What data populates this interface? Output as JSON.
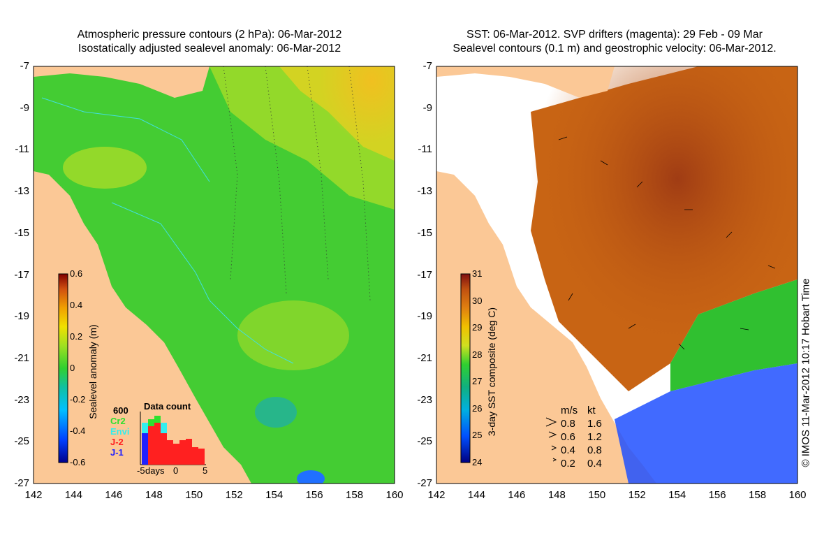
{
  "left_panel": {
    "title_line1": "Atmospheric pressure contours (2 hPa): 06-Mar-2012",
    "title_line2": "Isostatically adjusted sealevel anomaly: 06-Mar-2012",
    "y_ticks": [
      "-7",
      "-9",
      "-11",
      "-13",
      "-15",
      "-17",
      "-19",
      "-21",
      "-23",
      "-25",
      "-27"
    ],
    "x_ticks": [
      "142",
      "144",
      "146",
      "148",
      "150",
      "152",
      "154",
      "156",
      "158",
      "160"
    ],
    "colorbar": {
      "label": "Sealevel anomaly (m)",
      "ticks": [
        "0.6",
        "0.4",
        "0.2",
        "0",
        "-0.2",
        "-0.4",
        "-0.6"
      ]
    },
    "data_count": {
      "title": "Data count",
      "max_label": "600",
      "missions": [
        "Cr2",
        "Envi",
        "J-2",
        "J-1"
      ],
      "mission_colors": [
        "#2ee02e",
        "#33eeee",
        "#ff2020",
        "#2020ff"
      ],
      "x_labels": [
        "-5",
        "days",
        "0",
        "5"
      ]
    }
  },
  "right_panel": {
    "title_line1": "SST: 06-Mar-2012. SVP drifters (magenta): 29 Feb - 09 Mar",
    "title_line2": "Sealevel contours (0.1 m) and geostrophic velocity: 06-Mar-2012.",
    "y_ticks": [
      "-7",
      "-9",
      "-11",
      "-13",
      "-15",
      "-17",
      "-19",
      "-21",
      "-23",
      "-25",
      "-27"
    ],
    "x_ticks": [
      "142",
      "144",
      "146",
      "148",
      "150",
      "152",
      "154",
      "156",
      "158",
      "160"
    ],
    "colorbar": {
      "label": "3-day SST composite (deg C)",
      "ticks": [
        "31",
        "30",
        "29",
        "28",
        "27",
        "26",
        "25",
        "24"
      ]
    },
    "velocity_legend": {
      "header_ms": "m/s",
      "header_kt": "kt",
      "rows": [
        {
          "ms": "0.8",
          "kt": "1.6"
        },
        {
          "ms": "0.6",
          "kt": "1.2"
        },
        {
          "ms": "0.4",
          "kt": "0.8"
        },
        {
          "ms": "0.2",
          "kt": "0.4"
        }
      ]
    }
  },
  "credit": "© IMOS 11-Mar-2012 10:17 Hobart Time",
  "colors": {
    "land": "#fbc896",
    "no_data": "#ffffff",
    "sla_green": "#33cc33",
    "sst_orange": "#c86414"
  }
}
